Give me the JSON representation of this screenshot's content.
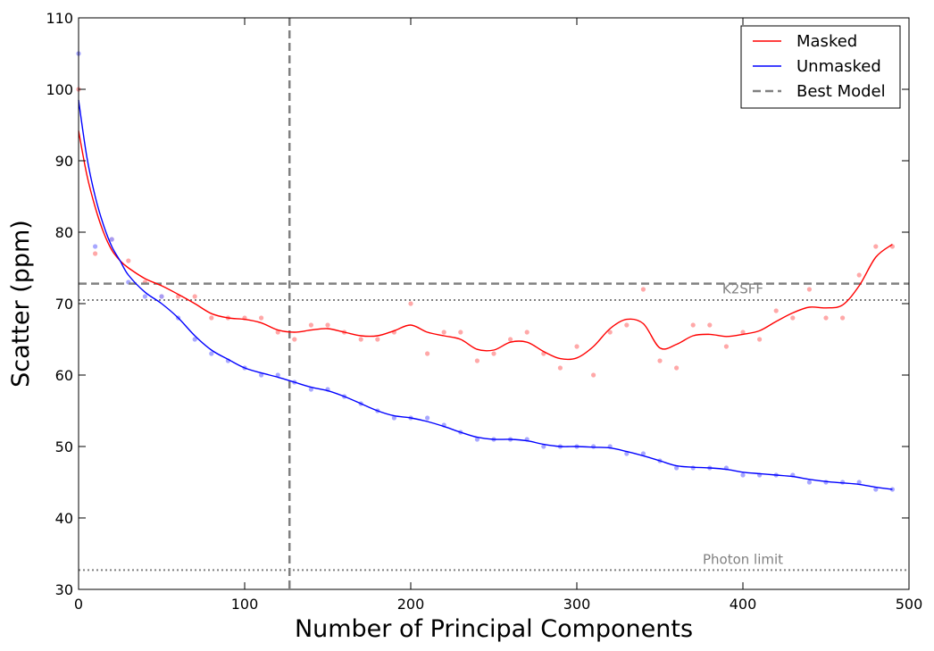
{
  "chart_data": {
    "type": "scatter",
    "xlabel": "Number of Principal Components",
    "ylabel": "Scatter (ppm)",
    "xlim": [
      0,
      500
    ],
    "ylim": [
      30,
      110
    ],
    "xticks": [
      0,
      100,
      200,
      300,
      400,
      500
    ],
    "yticks": [
      30,
      40,
      50,
      60,
      70,
      80,
      90,
      100,
      110
    ],
    "legend_position": "top-right",
    "legend": [
      {
        "label": "Masked",
        "color": "#ff0000",
        "style": "solid"
      },
      {
        "label": "Unmasked",
        "color": "#0000ff",
        "style": "solid"
      },
      {
        "label": "Best Model",
        "color": "#808080",
        "style": "dashed"
      }
    ],
    "series": [
      {
        "name": "Masked",
        "color": "#ff0000",
        "point_color": "#ff9999",
        "points_x": [
          0,
          10,
          20,
          30,
          40,
          50,
          60,
          70,
          80,
          90,
          100,
          110,
          120,
          130,
          140,
          150,
          160,
          170,
          180,
          190,
          200,
          210,
          220,
          230,
          240,
          250,
          260,
          270,
          280,
          290,
          300,
          310,
          320,
          330,
          340,
          350,
          360,
          370,
          380,
          390,
          400,
          410,
          420,
          430,
          440,
          450,
          460,
          470,
          480,
          490
        ],
        "points_y": [
          100,
          77,
          79,
          76,
          73,
          71,
          71,
          71,
          68,
          68,
          68,
          68,
          66,
          65,
          67,
          67,
          66,
          65,
          65,
          66,
          70,
          63,
          66,
          66,
          62,
          63,
          65,
          66,
          63,
          61,
          64,
          60,
          66,
          67,
          72,
          62,
          61,
          67,
          67,
          64,
          66,
          65,
          69,
          68,
          72,
          68,
          68,
          74,
          78,
          78
        ],
        "curve_x": [
          0,
          5,
          10,
          15,
          20,
          25,
          30,
          40,
          50,
          60,
          70,
          80,
          90,
          100,
          110,
          120,
          130,
          140,
          150,
          160,
          170,
          180,
          190,
          200,
          210,
          220,
          230,
          240,
          250,
          260,
          270,
          280,
          290,
          300,
          310,
          320,
          330,
          340,
          350,
          360,
          370,
          380,
          390,
          400,
          410,
          420,
          430,
          440,
          450,
          460,
          470,
          480,
          490
        ],
        "curve_y": [
          94.2,
          88,
          83.5,
          80,
          77.5,
          76,
          75,
          73.5,
          72.5,
          71.3,
          70,
          68.6,
          68,
          67.8,
          67.3,
          66.3,
          66,
          66.3,
          66.5,
          66,
          65.5,
          65.5,
          66.2,
          67,
          66,
          65.5,
          65,
          63.6,
          63.5,
          64.6,
          64.6,
          63.3,
          62.3,
          62.4,
          64,
          66.5,
          67.8,
          67.2,
          63.8,
          64.3,
          65.5,
          65.7,
          65.4,
          65.7,
          66.2,
          67.5,
          68.7,
          69.5,
          69.4,
          69.8,
          72.5,
          76.5,
          78.3
        ]
      },
      {
        "name": "Unmasked",
        "color": "#0000ff",
        "point_color": "#9999ff",
        "points_x": [
          0,
          10,
          20,
          30,
          40,
          50,
          60,
          70,
          80,
          90,
          100,
          110,
          120,
          130,
          140,
          150,
          160,
          170,
          180,
          190,
          200,
          210,
          220,
          230,
          240,
          250,
          260,
          270,
          280,
          290,
          300,
          310,
          320,
          330,
          340,
          350,
          360,
          370,
          380,
          390,
          400,
          410,
          420,
          430,
          440,
          450,
          460,
          470,
          480,
          490
        ],
        "points_y": [
          105,
          78,
          79,
          73,
          71,
          71,
          68,
          65,
          63,
          62,
          61,
          60,
          60,
          59,
          58,
          58,
          57,
          56,
          55,
          54,
          54,
          54,
          53,
          52,
          51,
          51,
          51,
          51,
          50,
          50,
          50,
          50,
          50,
          49,
          49,
          48,
          47,
          47,
          47,
          47,
          46,
          46,
          46,
          46,
          45,
          45,
          45,
          45,
          44,
          44
        ],
        "curve_x": [
          0,
          5,
          10,
          15,
          20,
          25,
          30,
          40,
          50,
          60,
          70,
          80,
          90,
          100,
          110,
          120,
          130,
          140,
          150,
          160,
          170,
          180,
          190,
          200,
          210,
          220,
          230,
          240,
          250,
          260,
          270,
          280,
          290,
          300,
          310,
          320,
          330,
          340,
          350,
          360,
          370,
          380,
          390,
          400,
          410,
          420,
          430,
          440,
          450,
          460,
          470,
          480,
          490
        ],
        "curve_y": [
          98.5,
          90.5,
          85,
          81,
          78,
          76,
          74,
          71.6,
          70,
          68,
          65.5,
          63.5,
          62.2,
          61,
          60.3,
          59.7,
          59,
          58.3,
          57.8,
          57,
          56,
          55,
          54.3,
          54,
          53.5,
          52.8,
          52,
          51.3,
          51,
          51,
          50.8,
          50.3,
          50,
          50,
          49.9,
          49.8,
          49.3,
          48.7,
          48,
          47.3,
          47.1,
          47,
          46.8,
          46.4,
          46.2,
          46,
          45.8,
          45.4,
          45.1,
          44.9,
          44.7,
          44.3,
          44
        ]
      }
    ],
    "reference_lines": [
      {
        "orientation": "vertical",
        "x": 127,
        "label": "",
        "style": "dashed",
        "color": "#808080"
      },
      {
        "orientation": "horizontal",
        "y": 72.8,
        "label": "K2SFF",
        "style": "dashed",
        "color": "#808080"
      },
      {
        "orientation": "horizontal",
        "y": 70.5,
        "label": "",
        "style": "dotted",
        "color": "#808080"
      },
      {
        "orientation": "horizontal",
        "y": 32.7,
        "label": "Photon limit",
        "style": "dotted",
        "color": "#808080"
      }
    ]
  }
}
